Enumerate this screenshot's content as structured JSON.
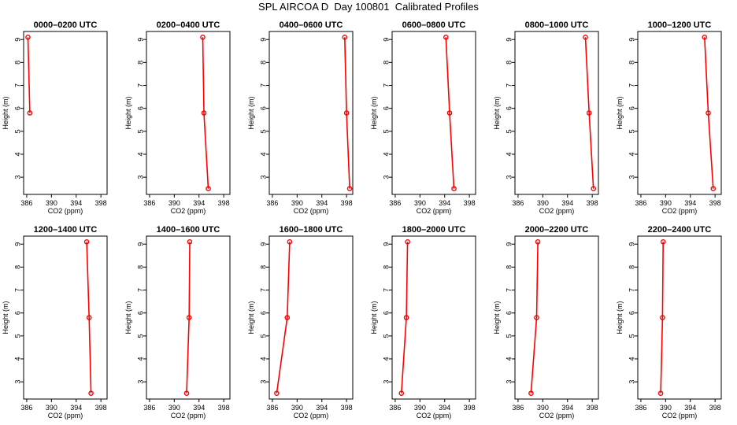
{
  "title": "SPL AIRCOA D  Day 100801  Calibrated Profiles",
  "colors": {
    "series": "#ff0000",
    "axis": "#000000"
  },
  "chart_data": [
    {
      "type": "line",
      "title": "0000–0200 UTC",
      "xlabel": "CO2 (ppm)",
      "ylabel": "Height (m)",
      "xlim": [
        385.5,
        399
      ],
      "ylim": [
        2.25,
        9.35
      ],
      "xticks": [
        386,
        390,
        394,
        398
      ],
      "xtick_labels": [
        "386",
        "390",
        "394",
        "398"
      ],
      "yticks": [
        3,
        4,
        5,
        6,
        7,
        8,
        9
      ],
      "ytick_labels": [
        "3",
        "4",
        "5",
        "6",
        "7",
        "8",
        "9"
      ],
      "series": [
        {
          "x": [
            386.2,
            386.5
          ],
          "y": [
            9.1,
            5.8
          ]
        }
      ]
    },
    {
      "type": "line",
      "title": "0200–0400 UTC",
      "xlabel": "CO2 (ppm)",
      "ylabel": "Height (m)",
      "xlim": [
        385.5,
        399
      ],
      "ylim": [
        2.25,
        9.35
      ],
      "xticks": [
        386,
        390,
        394,
        398
      ],
      "xtick_labels": [
        "386",
        "390",
        "394",
        "398"
      ],
      "yticks": [
        3,
        4,
        5,
        6,
        7,
        8,
        9
      ],
      "ytick_labels": [
        "3",
        "4",
        "5",
        "6",
        "7",
        "8",
        "9"
      ],
      "series": [
        {
          "x": [
            394.6,
            394.8,
            395.5
          ],
          "y": [
            9.1,
            5.8,
            2.5
          ]
        }
      ]
    },
    {
      "type": "line",
      "title": "0400–0600 UTC",
      "xlabel": "CO2 (ppm)",
      "ylabel": "Height (m)",
      "xlim": [
        385.5,
        399
      ],
      "ylim": [
        2.25,
        9.35
      ],
      "xticks": [
        386,
        390,
        394,
        398
      ],
      "xtick_labels": [
        "386",
        "390",
        "394",
        "398"
      ],
      "yticks": [
        3,
        4,
        5,
        6,
        7,
        8,
        9
      ],
      "ytick_labels": [
        "3",
        "4",
        "5",
        "6",
        "7",
        "8",
        "9"
      ],
      "series": [
        {
          "x": [
            397.7,
            398.0,
            398.5
          ],
          "y": [
            9.1,
            5.8,
            2.5
          ]
        }
      ]
    },
    {
      "type": "line",
      "title": "0600–0800 UTC",
      "xlabel": "CO2 (ppm)",
      "ylabel": "Height (m)",
      "xlim": [
        385.5,
        399
      ],
      "ylim": [
        2.25,
        9.35
      ],
      "xticks": [
        386,
        390,
        394,
        398
      ],
      "xtick_labels": [
        "386",
        "390",
        "394",
        "398"
      ],
      "yticks": [
        3,
        4,
        5,
        6,
        7,
        8,
        9
      ],
      "ytick_labels": [
        "3",
        "4",
        "5",
        "6",
        "7",
        "8",
        "9"
      ],
      "series": [
        {
          "x": [
            394.2,
            394.8,
            395.5
          ],
          "y": [
            9.1,
            5.8,
            2.5
          ]
        }
      ]
    },
    {
      "type": "line",
      "title": "0800–1000 UTC",
      "xlabel": "CO2 (ppm)",
      "ylabel": "Height (m)",
      "xlim": [
        385.5,
        399
      ],
      "ylim": [
        2.25,
        9.35
      ],
      "xticks": [
        386,
        390,
        394,
        398
      ],
      "xtick_labels": [
        "386",
        "390",
        "394",
        "398"
      ],
      "yticks": [
        3,
        4,
        5,
        6,
        7,
        8,
        9
      ],
      "ytick_labels": [
        "3",
        "4",
        "5",
        "6",
        "7",
        "8",
        "9"
      ],
      "series": [
        {
          "x": [
            396.9,
            397.5,
            398.2
          ],
          "y": [
            9.1,
            5.8,
            2.5
          ]
        }
      ]
    },
    {
      "type": "line",
      "title": "1000–1200 UTC",
      "xlabel": "CO2 (ppm)",
      "ylabel": "Height (m)",
      "xlim": [
        385.5,
        399
      ],
      "ylim": [
        2.25,
        9.35
      ],
      "xticks": [
        386,
        390,
        394,
        398
      ],
      "xtick_labels": [
        "386",
        "390",
        "394",
        "398"
      ],
      "yticks": [
        3,
        4,
        5,
        6,
        7,
        8,
        9
      ],
      "ytick_labels": [
        "3",
        "4",
        "5",
        "6",
        "7",
        "8",
        "9"
      ],
      "series": [
        {
          "x": [
            396.3,
            396.9,
            397.7
          ],
          "y": [
            9.1,
            5.8,
            2.5
          ]
        }
      ]
    },
    {
      "type": "line",
      "title": "1200–1400 UTC",
      "xlabel": "CO2 (ppm)",
      "ylabel": "Height (m)",
      "xlim": [
        385.5,
        399
      ],
      "ylim": [
        2.25,
        9.35
      ],
      "xticks": [
        386,
        390,
        394,
        398
      ],
      "xtick_labels": [
        "386",
        "390",
        "394",
        "398"
      ],
      "yticks": [
        3,
        4,
        5,
        6,
        7,
        8,
        9
      ],
      "ytick_labels": [
        "3",
        "4",
        "5",
        "6",
        "7",
        "8",
        "9"
      ],
      "series": [
        {
          "x": [
            395.7,
            396.1,
            396.4
          ],
          "y": [
            9.1,
            5.8,
            2.5
          ]
        }
      ]
    },
    {
      "type": "line",
      "title": "1400–1600 UTC",
      "xlabel": "CO2 (ppm)",
      "ylabel": "Height (m)",
      "xlim": [
        385.5,
        399
      ],
      "ylim": [
        2.25,
        9.35
      ],
      "xticks": [
        386,
        390,
        394,
        398
      ],
      "xtick_labels": [
        "386",
        "390",
        "394",
        "398"
      ],
      "yticks": [
        3,
        4,
        5,
        6,
        7,
        8,
        9
      ],
      "ytick_labels": [
        "3",
        "4",
        "5",
        "6",
        "7",
        "8",
        "9"
      ],
      "series": [
        {
          "x": [
            392.5,
            392.4,
            392.0
          ],
          "y": [
            9.1,
            5.8,
            2.5
          ]
        }
      ]
    },
    {
      "type": "line",
      "title": "1600–1800 UTC",
      "xlabel": "CO2 (ppm)",
      "ylabel": "Height (m)",
      "xlim": [
        385.5,
        399
      ],
      "ylim": [
        2.25,
        9.35
      ],
      "xticks": [
        386,
        390,
        394,
        398
      ],
      "xtick_labels": [
        "386",
        "390",
        "394",
        "398"
      ],
      "yticks": [
        3,
        4,
        5,
        6,
        7,
        8,
        9
      ],
      "ytick_labels": [
        "3",
        "4",
        "5",
        "6",
        "7",
        "8",
        "9"
      ],
      "series": [
        {
          "x": [
            388.8,
            388.4,
            386.7
          ],
          "y": [
            9.1,
            5.8,
            2.5
          ]
        }
      ]
    },
    {
      "type": "line",
      "title": "1800–2000 UTC",
      "xlabel": "CO2 (ppm)",
      "ylabel": "Height (m)",
      "xlim": [
        385.5,
        399
      ],
      "ylim": [
        2.25,
        9.35
      ],
      "xticks": [
        386,
        390,
        394,
        398
      ],
      "xtick_labels": [
        "386",
        "390",
        "394",
        "398"
      ],
      "yticks": [
        3,
        4,
        5,
        6,
        7,
        8,
        9
      ],
      "ytick_labels": [
        "3",
        "4",
        "5",
        "6",
        "7",
        "8",
        "9"
      ],
      "series": [
        {
          "x": [
            388.0,
            387.8,
            387.0
          ],
          "y": [
            9.1,
            5.8,
            2.5
          ]
        }
      ]
    },
    {
      "type": "line",
      "title": "2000–2200 UTC",
      "xlabel": "CO2 (ppm)",
      "ylabel": "Height (m)",
      "xlim": [
        385.5,
        399
      ],
      "ylim": [
        2.25,
        9.35
      ],
      "xticks": [
        386,
        390,
        394,
        398
      ],
      "xtick_labels": [
        "386",
        "390",
        "394",
        "398"
      ],
      "yticks": [
        3,
        4,
        5,
        6,
        7,
        8,
        9
      ],
      "ytick_labels": [
        "3",
        "4",
        "5",
        "6",
        "7",
        "8",
        "9"
      ],
      "series": [
        {
          "x": [
            389.2,
            389.0,
            388.1
          ],
          "y": [
            9.1,
            5.8,
            2.5
          ]
        }
      ]
    },
    {
      "type": "line",
      "title": "2200–2400 UTC",
      "xlabel": "CO2 (ppm)",
      "ylabel": "Height (m)",
      "xlim": [
        385.5,
        399
      ],
      "ylim": [
        2.25,
        9.35
      ],
      "xticks": [
        386,
        390,
        394,
        398
      ],
      "xtick_labels": [
        "386",
        "390",
        "394",
        "398"
      ],
      "yticks": [
        3,
        4,
        5,
        6,
        7,
        8,
        9
      ],
      "ytick_labels": [
        "3",
        "4",
        "5",
        "6",
        "7",
        "8",
        "9"
      ],
      "series": [
        {
          "x": [
            389.6,
            389.5,
            389.2
          ],
          "y": [
            9.1,
            5.8,
            2.5
          ]
        }
      ]
    }
  ]
}
